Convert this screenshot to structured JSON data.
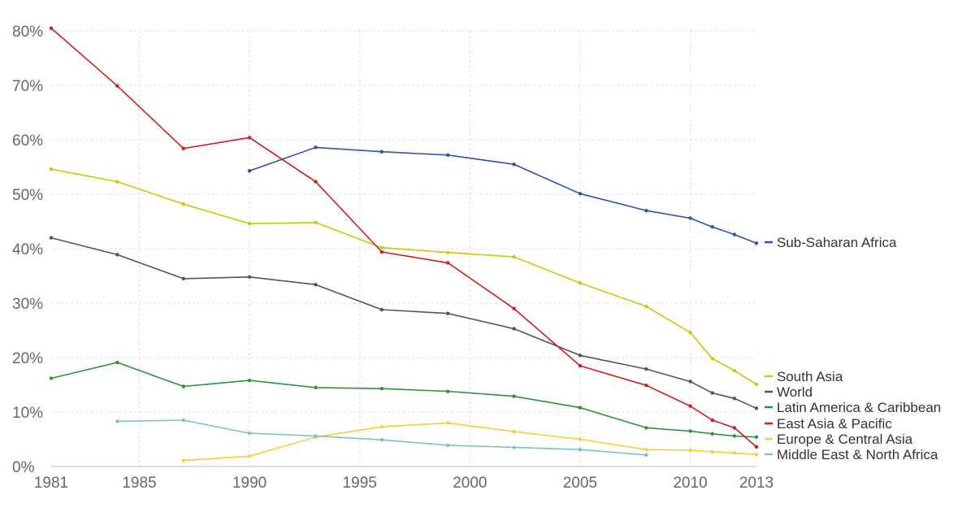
{
  "chart_data": {
    "type": "line",
    "title": "",
    "xlabel": "",
    "ylabel": "",
    "xlim": [
      1981,
      2013
    ],
    "ylim": [
      0,
      80
    ],
    "grid": true,
    "legend_placement": "right (end-of-line labels)",
    "x_ticks": [
      1981,
      1985,
      1990,
      1995,
      2000,
      2005,
      2010,
      2013
    ],
    "x_tick_labels": [
      "1981",
      "1985",
      "1990",
      "1995",
      "2000",
      "2005",
      "2010",
      "2013"
    ],
    "y_ticks": [
      0,
      10,
      20,
      30,
      40,
      50,
      60,
      70,
      80
    ],
    "y_tick_labels": [
      "0%",
      "10%",
      "20%",
      "30%",
      "40%",
      "50%",
      "60%",
      "70%",
      "80%"
    ],
    "series": [
      {
        "name": "Sub-Saharan Africa",
        "color": "#2b55a3",
        "x": [
          1990,
          1993,
          1996,
          1999,
          2002,
          2005,
          2008,
          2010,
          2011,
          2012,
          2013
        ],
        "values": [
          54.3,
          58.6,
          57.8,
          57.2,
          55.5,
          50.1,
          47.0,
          45.6,
          44.0,
          42.6,
          41.0
        ]
      },
      {
        "name": "South Asia",
        "color": "#c8c80a",
        "x": [
          1981,
          1984,
          1987,
          1990,
          1993,
          1996,
          1999,
          2002,
          2005,
          2008,
          2010,
          2011,
          2012,
          2013
        ],
        "values": [
          54.6,
          52.3,
          48.2,
          44.6,
          44.8,
          40.2,
          39.3,
          38.5,
          33.7,
          29.4,
          24.6,
          19.8,
          17.6,
          15.1
        ]
      },
      {
        "name": "World",
        "color": "#555555",
        "x": [
          1981,
          1984,
          1987,
          1990,
          1993,
          1996,
          1999,
          2002,
          2005,
          2008,
          2010,
          2011,
          2012,
          2013
        ],
        "values": [
          42.0,
          38.9,
          34.5,
          34.8,
          33.4,
          28.8,
          28.1,
          25.3,
          20.4,
          17.9,
          15.6,
          13.5,
          12.5,
          10.7
        ]
      },
      {
        "name": "Latin America & Caribbean",
        "color": "#2e9137",
        "x": [
          1981,
          1984,
          1987,
          1990,
          1993,
          1996,
          1999,
          2002,
          2005,
          2008,
          2010,
          2011,
          2012,
          2013
        ],
        "values": [
          16.2,
          19.1,
          14.7,
          15.8,
          14.5,
          14.3,
          13.8,
          12.9,
          10.8,
          7.1,
          6.5,
          6.0,
          5.6,
          5.4
        ]
      },
      {
        "name": "East Asia & Pacific",
        "color": "#cc1f1f",
        "x": [
          1981,
          1984,
          1987,
          1990,
          1993,
          1996,
          1999,
          2002,
          2005,
          2008,
          2010,
          2011,
          2012,
          2013
        ],
        "values": [
          80.5,
          69.9,
          58.4,
          60.4,
          52.3,
          39.4,
          37.4,
          29.0,
          18.5,
          14.9,
          11.1,
          8.5,
          7.1,
          3.6
        ]
      },
      {
        "name": "Europe & Central Asia",
        "color": "#f5cf3a",
        "x": [
          1987,
          1990,
          1993,
          1996,
          1999,
          2002,
          2005,
          2008,
          2010,
          2011,
          2012,
          2013
        ],
        "values": [
          1.1,
          1.9,
          5.4,
          7.3,
          8.0,
          6.4,
          5.0,
          3.1,
          3.0,
          2.7,
          2.5,
          2.2
        ]
      },
      {
        "name": "Middle East & North Africa",
        "color": "#78c4c4",
        "x": [
          1984,
          1987,
          1990,
          1993,
          1996,
          1999,
          2002,
          2005,
          2008
        ],
        "values": [
          8.3,
          8.5,
          6.1,
          5.6,
          4.9,
          3.9,
          3.5,
          3.1,
          2.1
        ]
      }
    ]
  }
}
